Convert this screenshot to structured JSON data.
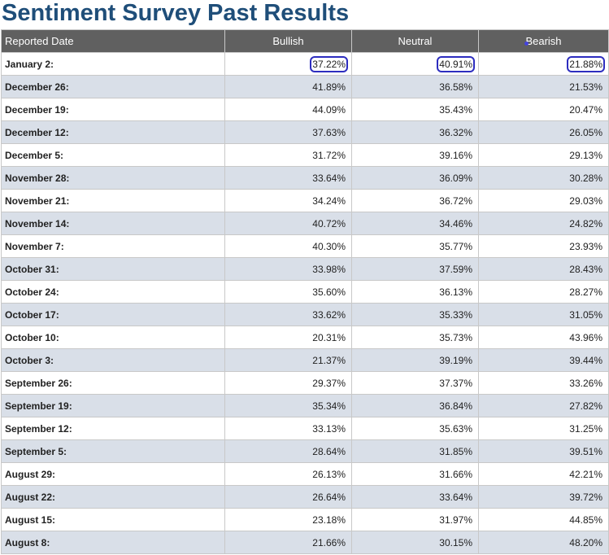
{
  "page": {
    "title": "Sentiment Survey Past Results"
  },
  "table": {
    "headers": [
      "Reported Date",
      "Bullish",
      "Neutral",
      "Bearish"
    ],
    "rows": [
      {
        "date": "January 2:",
        "bullish": "37.22%",
        "neutral": "40.91%",
        "bearish": "21.88%"
      },
      {
        "date": "December 26:",
        "bullish": "41.89%",
        "neutral": "36.58%",
        "bearish": "21.53%"
      },
      {
        "date": "December 19:",
        "bullish": "44.09%",
        "neutral": "35.43%",
        "bearish": "20.47%"
      },
      {
        "date": "December 12:",
        "bullish": "37.63%",
        "neutral": "36.32%",
        "bearish": "26.05%"
      },
      {
        "date": "December 5:",
        "bullish": "31.72%",
        "neutral": "39.16%",
        "bearish": "29.13%"
      },
      {
        "date": "November 28:",
        "bullish": "33.64%",
        "neutral": "36.09%",
        "bearish": "30.28%"
      },
      {
        "date": "November 21:",
        "bullish": "34.24%",
        "neutral": "36.72%",
        "bearish": "29.03%"
      },
      {
        "date": "November 14:",
        "bullish": "40.72%",
        "neutral": "34.46%",
        "bearish": "24.82%"
      },
      {
        "date": "November 7:",
        "bullish": "40.30%",
        "neutral": "35.77%",
        "bearish": "23.93%"
      },
      {
        "date": "October 31:",
        "bullish": "33.98%",
        "neutral": "37.59%",
        "bearish": "28.43%"
      },
      {
        "date": "October 24:",
        "bullish": "35.60%",
        "neutral": "36.13%",
        "bearish": "28.27%"
      },
      {
        "date": "October 17:",
        "bullish": "33.62%",
        "neutral": "35.33%",
        "bearish": "31.05%"
      },
      {
        "date": "October 10:",
        "bullish": "20.31%",
        "neutral": "35.73%",
        "bearish": "43.96%"
      },
      {
        "date": "October 3:",
        "bullish": "21.37%",
        "neutral": "39.19%",
        "bearish": "39.44%"
      },
      {
        "date": "September 26:",
        "bullish": "29.37%",
        "neutral": "37.37%",
        "bearish": "33.26%"
      },
      {
        "date": "September 19:",
        "bullish": "35.34%",
        "neutral": "36.84%",
        "bearish": "27.82%"
      },
      {
        "date": "September 12:",
        "bullish": "33.13%",
        "neutral": "35.63%",
        "bearish": "31.25%"
      },
      {
        "date": "September 5:",
        "bullish": "28.64%",
        "neutral": "31.85%",
        "bearish": "39.51%"
      },
      {
        "date": "August 29:",
        "bullish": "26.13%",
        "neutral": "31.66%",
        "bearish": "42.21%"
      },
      {
        "date": "August 22:",
        "bullish": "26.64%",
        "neutral": "33.64%",
        "bearish": "39.72%"
      },
      {
        "date": "August 15:",
        "bullish": "23.18%",
        "neutral": "31.97%",
        "bearish": "44.85%"
      },
      {
        "date": "August 8:",
        "bullish": "21.66%",
        "neutral": "30.15%",
        "bearish": "48.20%"
      }
    ]
  },
  "colors": {
    "title": "#1f4e79",
    "header_bg": "#606060",
    "alt_row_bg": "#d9dfe8",
    "highlight_border": "#2d2dbf"
  }
}
